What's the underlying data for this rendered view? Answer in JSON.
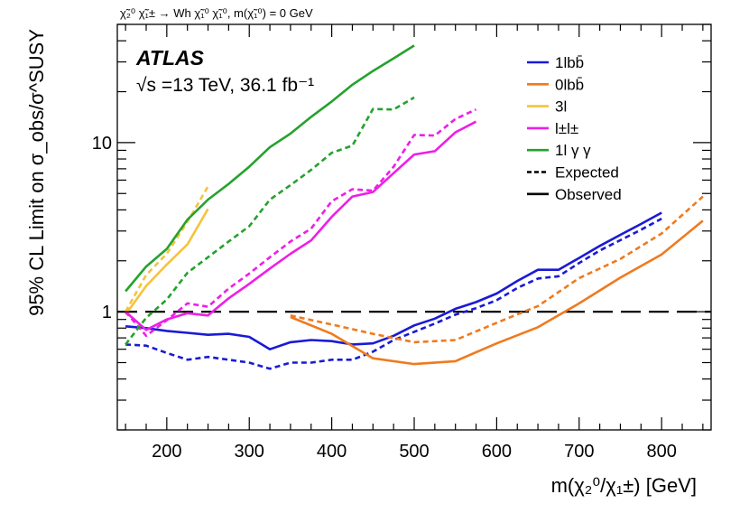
{
  "chart_data": {
    "type": "line",
    "process_label": "χ̃₂⁰ χ̃₁± → Wh χ̃₁⁰ χ̃₁⁰, m(χ̃₁⁰) = 0 GeV",
    "atlas_label": "ATLAS",
    "energy_label": "√s =13 TeV, 36.1 fb⁻¹",
    "xlabel": "m(χ₂⁰/χ₁±) [GeV]",
    "ylabel": "95% CL Limit on σ_obs/σ^SUSY",
    "xlim": [
      140,
      860
    ],
    "ylim": [
      0.2,
      50
    ],
    "yscale": "log",
    "x_ticks": [
      200,
      300,
      400,
      500,
      600,
      700,
      800
    ],
    "y_ticks": [
      1,
      10
    ],
    "reference_line": 1,
    "series": [
      {
        "name": "1lbb̄",
        "color": "#1a1ad6",
        "observed": [
          [
            150,
            0.82
          ],
          [
            175,
            0.8
          ],
          [
            200,
            0.77
          ],
          [
            225,
            0.75
          ],
          [
            250,
            0.73
          ],
          [
            275,
            0.74
          ],
          [
            300,
            0.71
          ],
          [
            325,
            0.6
          ],
          [
            350,
            0.66
          ],
          [
            375,
            0.68
          ],
          [
            400,
            0.67
          ],
          [
            425,
            0.64
          ],
          [
            450,
            0.65
          ],
          [
            475,
            0.72
          ],
          [
            500,
            0.83
          ],
          [
            525,
            0.91
          ],
          [
            550,
            1.04
          ],
          [
            575,
            1.14
          ],
          [
            600,
            1.28
          ],
          [
            625,
            1.52
          ],
          [
            650,
            1.77
          ],
          [
            675,
            1.77
          ],
          [
            700,
            2.08
          ],
          [
            725,
            2.45
          ],
          [
            750,
            2.85
          ],
          [
            775,
            3.3
          ],
          [
            800,
            3.85
          ]
        ],
        "expected": [
          [
            150,
            0.64
          ],
          [
            175,
            0.63
          ],
          [
            200,
            0.57
          ],
          [
            225,
            0.52
          ],
          [
            250,
            0.54
          ],
          [
            275,
            0.52
          ],
          [
            300,
            0.5
          ],
          [
            325,
            0.46
          ],
          [
            350,
            0.5
          ],
          [
            375,
            0.5
          ],
          [
            400,
            0.52
          ],
          [
            425,
            0.52
          ],
          [
            450,
            0.58
          ],
          [
            475,
            0.68
          ],
          [
            500,
            0.76
          ],
          [
            525,
            0.85
          ],
          [
            550,
            0.96
          ],
          [
            575,
            1.05
          ],
          [
            600,
            1.17
          ],
          [
            625,
            1.38
          ],
          [
            650,
            1.57
          ],
          [
            675,
            1.62
          ],
          [
            700,
            1.94
          ],
          [
            725,
            2.3
          ],
          [
            750,
            2.65
          ],
          [
            775,
            3.05
          ],
          [
            800,
            3.55
          ]
        ]
      },
      {
        "name": "0lbb̄",
        "color": "#f07a1e",
        "observed": [
          [
            350,
            0.93
          ],
          [
            400,
            0.74
          ],
          [
            450,
            0.53
          ],
          [
            500,
            0.49
          ],
          [
            550,
            0.51
          ],
          [
            600,
            0.65
          ],
          [
            650,
            0.81
          ],
          [
            700,
            1.12
          ],
          [
            750,
            1.59
          ],
          [
            800,
            2.18
          ],
          [
            850,
            3.45
          ]
        ],
        "expected": [
          [
            350,
            0.95
          ],
          [
            400,
            0.84
          ],
          [
            450,
            0.74
          ],
          [
            500,
            0.66
          ],
          [
            550,
            0.68
          ],
          [
            600,
            0.86
          ],
          [
            650,
            1.08
          ],
          [
            700,
            1.58
          ],
          [
            750,
            2.05
          ],
          [
            800,
            2.9
          ],
          [
            850,
            4.8
          ]
        ]
      },
      {
        "name": "3l",
        "color": "#f5c33b",
        "observed": [
          [
            150,
            0.96
          ],
          [
            175,
            1.42
          ],
          [
            200,
            1.9
          ],
          [
            225,
            2.5
          ],
          [
            250,
            4.05
          ]
        ],
        "expected": [
          [
            150,
            1.0
          ],
          [
            175,
            1.65
          ],
          [
            200,
            2.2
          ],
          [
            225,
            3.4
          ],
          [
            250,
            5.5
          ]
        ]
      },
      {
        "name": "l±l±",
        "color": "#ee1ee8",
        "observed": [
          [
            150,
            1.0
          ],
          [
            175,
            0.78
          ],
          [
            200,
            0.9
          ],
          [
            225,
            0.98
          ],
          [
            250,
            0.95
          ],
          [
            275,
            1.2
          ],
          [
            300,
            1.46
          ],
          [
            325,
            1.8
          ],
          [
            350,
            2.2
          ],
          [
            375,
            2.64
          ],
          [
            400,
            3.64
          ],
          [
            425,
            4.8
          ],
          [
            450,
            5.1
          ],
          [
            475,
            6.6
          ],
          [
            500,
            8.5
          ],
          [
            525,
            8.9
          ],
          [
            550,
            11.5
          ],
          [
            575,
            13.3
          ]
        ],
        "expected": [
          [
            150,
            1.0
          ],
          [
            175,
            0.72
          ],
          [
            200,
            0.89
          ],
          [
            225,
            1.12
          ],
          [
            250,
            1.07
          ],
          [
            275,
            1.37
          ],
          [
            300,
            1.68
          ],
          [
            325,
            2.1
          ],
          [
            350,
            2.6
          ],
          [
            375,
            3.1
          ],
          [
            400,
            4.5
          ],
          [
            425,
            5.3
          ],
          [
            450,
            5.2
          ],
          [
            475,
            7.2
          ],
          [
            500,
            11.1
          ],
          [
            525,
            11.0
          ],
          [
            550,
            13.8
          ],
          [
            575,
            15.7
          ]
        ]
      },
      {
        "name": "1lγγ",
        "color": "#25a22c",
        "observed": [
          [
            150,
            1.32
          ],
          [
            175,
            1.85
          ],
          [
            200,
            2.35
          ],
          [
            225,
            3.5
          ],
          [
            250,
            4.6
          ],
          [
            275,
            5.7
          ],
          [
            300,
            7.2
          ],
          [
            325,
            9.4
          ],
          [
            350,
            11.3
          ],
          [
            375,
            14.2
          ],
          [
            400,
            17.5
          ],
          [
            425,
            22.0
          ],
          [
            450,
            26.5
          ],
          [
            475,
            31.5
          ],
          [
            500,
            37.5
          ]
        ],
        "expected": [
          [
            150,
            0.64
          ],
          [
            175,
            0.92
          ],
          [
            200,
            1.18
          ],
          [
            225,
            1.7
          ],
          [
            250,
            2.1
          ],
          [
            275,
            2.6
          ],
          [
            300,
            3.2
          ],
          [
            325,
            4.6
          ],
          [
            350,
            5.6
          ],
          [
            375,
            6.9
          ],
          [
            400,
            8.7
          ],
          [
            425,
            9.6
          ],
          [
            450,
            15.8
          ],
          [
            475,
            15.7
          ],
          [
            500,
            18.5
          ]
        ]
      }
    ],
    "legend": {
      "placement": "top-right",
      "entries": [
        {
          "label": "1lbb̄",
          "color": "#1a1ad6",
          "style": "solid"
        },
        {
          "label": "0lbb̄",
          "color": "#f07a1e",
          "style": "solid"
        },
        {
          "label": "3l",
          "color": "#f5c33b",
          "style": "solid"
        },
        {
          "label": "l±l±",
          "color": "#ee1ee8",
          "style": "solid"
        },
        {
          "label": "1l γ γ",
          "color": "#25a22c",
          "style": "solid"
        },
        {
          "label": "Expected",
          "color": "#000000",
          "style": "dashed"
        },
        {
          "label": "Observed",
          "color": "#000000",
          "style": "solid"
        }
      ]
    }
  }
}
